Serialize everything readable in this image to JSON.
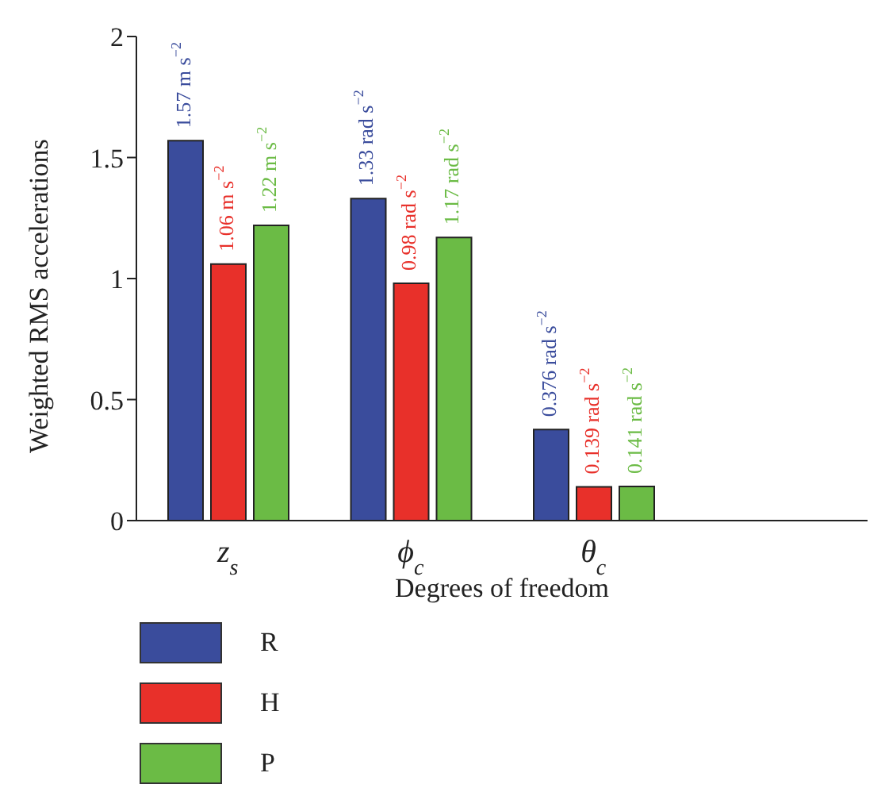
{
  "chart_data": {
    "type": "bar",
    "xlabel": "Degrees of freedom",
    "ylabel": "Weighted RMS accelerations",
    "categories": [
      "z$_{s}$",
      "ϕ$_{c}$",
      "θ$_{c}$"
    ],
    "series": [
      {
        "name": "R",
        "color": "#3a4c9c",
        "values": [
          1.57,
          1.33,
          0.376
        ],
        "value_labels": [
          "1.57 m s$^{−2}$",
          "1.33 rad s$^{−2}$",
          "0.376 rad s$^{−2}$"
        ]
      },
      {
        "name": "H",
        "color": "#e8302a",
        "values": [
          1.06,
          0.98,
          0.139
        ],
        "value_labels": [
          "1.06 m s$^{−2}$",
          "0.98 rad s$^{−2}$",
          "0.139 rad s$^{−2}$"
        ]
      },
      {
        "name": "P",
        "color": "#6bbb45",
        "values": [
          1.22,
          1.17,
          0.141
        ],
        "value_labels": [
          "1.22 m s$^{−2}$",
          "1.17 rad s$^{−2}$",
          "0.141 rad s$^{−2}$"
        ]
      }
    ],
    "ylim": [
      0,
      2
    ],
    "yticks": [
      0,
      0.5,
      1,
      1.5,
      2
    ],
    "grid": false,
    "legend": "bottom left"
  }
}
